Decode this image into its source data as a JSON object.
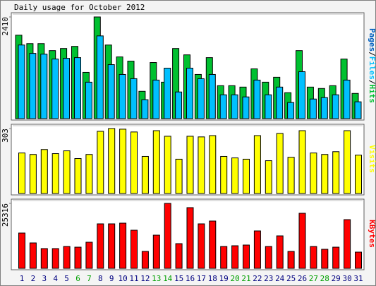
{
  "title": "Daily usage for October 2012",
  "legend_separator": "/",
  "chart_data": [
    {
      "type": "bar",
      "ylim": [
        0,
        2410
      ],
      "yticks": [
        2410
      ],
      "legend_extra": {
        "name": "Pages",
        "color": "#0060c0"
      },
      "series": [
        {
          "name": "Hits",
          "color": "#00c030",
          "values": [
            1978,
            1778,
            1778,
            1612,
            1662,
            1712,
            1097,
            2410,
            1745,
            1463,
            1363,
            648,
            1330,
            864,
            1662,
            1512,
            1047,
            1446,
            781,
            781,
            748,
            1180,
            864,
            981,
            615,
            1612,
            748,
            715,
            781,
            1413,
            598
          ]
        },
        {
          "name": "Files",
          "color": "#00c0ff",
          "values": [
            1745,
            1546,
            1529,
            1413,
            1429,
            1446,
            864,
            1961,
            1280,
            1047,
            947,
            449,
            914,
            1197,
            632,
            1197,
            947,
            1047,
            565,
            565,
            515,
            914,
            565,
            748,
            382,
            1114,
            465,
            499,
            565,
            914,
            399
          ]
        }
      ]
    },
    {
      "type": "bar",
      "ylim": [
        0,
        303
      ],
      "yticks": [
        303
      ],
      "series": [
        {
          "name": "Visits",
          "color": "#ffff00",
          "values": [
            189,
            182,
            205,
            186,
            199,
            163,
            182,
            290,
            303,
            300,
            287,
            173,
            293,
            267,
            160,
            267,
            264,
            270,
            173,
            166,
            160,
            270,
            153,
            280,
            169,
            293,
            189,
            182,
            195,
            293,
            179
          ]
        }
      ]
    },
    {
      "type": "bar",
      "ylim": [
        0,
        25316
      ],
      "yticks": [
        25316
      ],
      "series": [
        {
          "name": "KBytes",
          "color": "#ff0000",
          "values": [
            13759,
            9907,
            7705,
            7705,
            8531,
            8255,
            10182,
            17337,
            17337,
            17612,
            14860,
            6604,
            12934,
            25316,
            9631,
            23666,
            17337,
            18437,
            8531,
            8806,
            9081,
            14585,
            8531,
            12658,
            6604,
            21464,
            8531,
            7430,
            8255,
            18987,
            6329
          ]
        }
      ],
      "categories": [
        "1",
        "2",
        "3",
        "4",
        "5",
        "6",
        "7",
        "8",
        "9",
        "10",
        "11",
        "12",
        "13",
        "14",
        "15",
        "16",
        "17",
        "18",
        "19",
        "20",
        "21",
        "22",
        "23",
        "24",
        "25",
        "26",
        "27",
        "28",
        "29",
        "30",
        "31"
      ],
      "category_color": "#000080",
      "highlight_indices": [
        5,
        6,
        12,
        13,
        19,
        20,
        26,
        27
      ],
      "highlight_color": "#00a000"
    }
  ]
}
